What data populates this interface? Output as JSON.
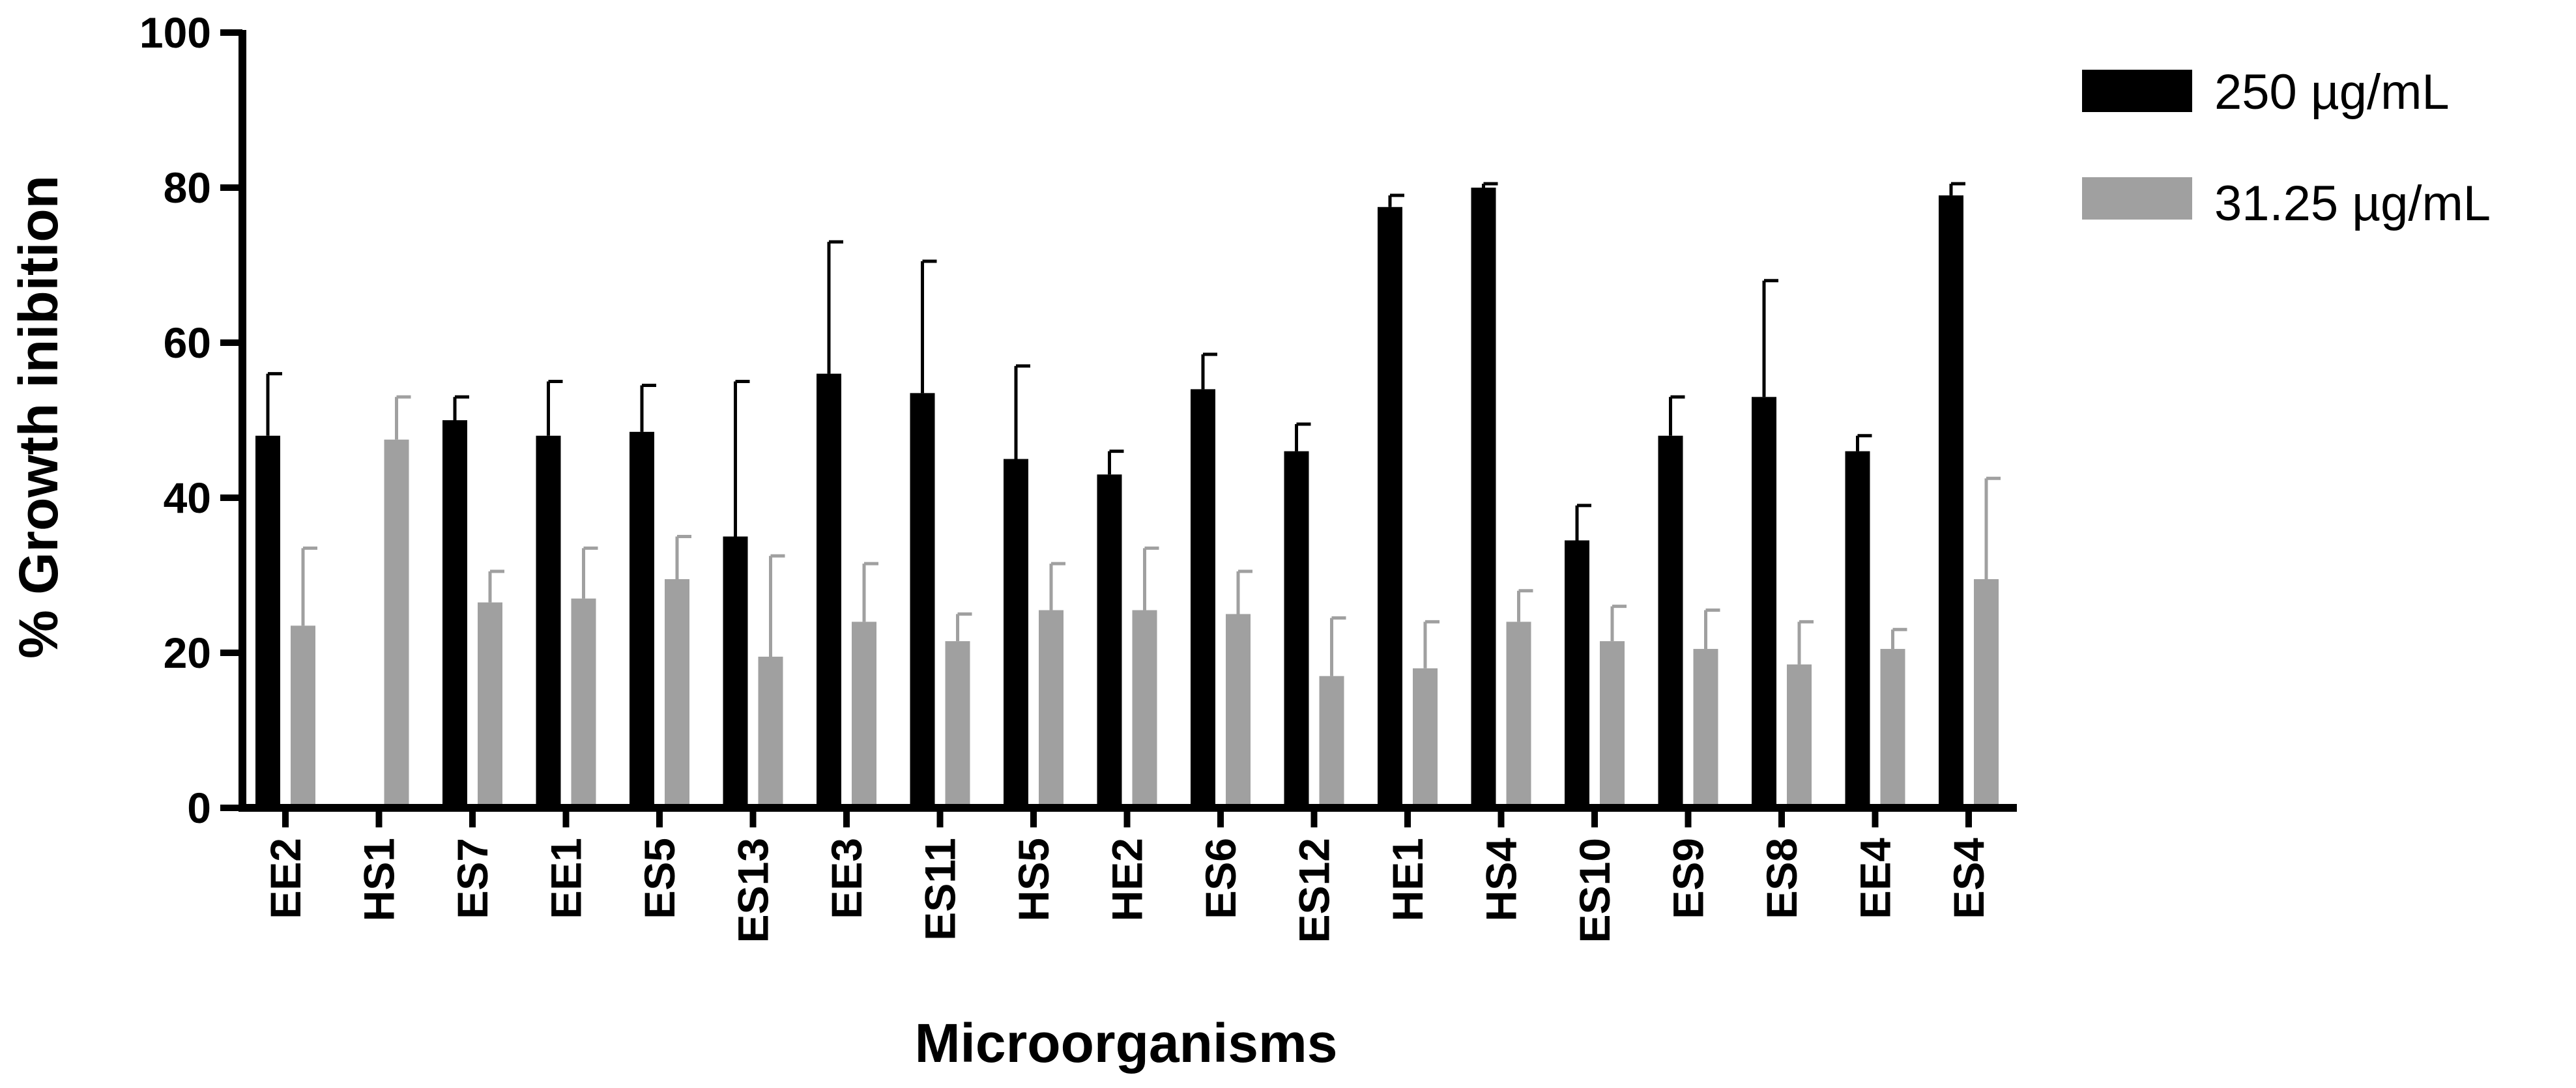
{
  "chart_data": {
    "type": "bar",
    "xlabel": "Microorganisms",
    "ylabel": "% Growth inibition",
    "ylim": [
      0,
      100
    ],
    "yticks": [
      "0",
      "20",
      "40",
      "60",
      "80",
      "100"
    ],
    "categories": [
      "EE2",
      "HS1",
      "ES7",
      "EE1",
      "ES5",
      "ES13",
      "EE3",
      "ES11",
      "HS5",
      "HE2",
      "ES6",
      "ES12",
      "HE1",
      "HS4",
      "ES10",
      "ES9",
      "ES8",
      "EE4",
      "ES4"
    ],
    "series": [
      {
        "name": "250 µg/mL",
        "color": "#000000",
        "values": [
          48,
          null,
          50,
          48,
          48.5,
          35,
          56,
          53.5,
          45,
          43,
          54,
          46,
          77.5,
          80,
          34.5,
          48,
          53,
          46,
          79
        ],
        "errors": [
          8,
          null,
          3,
          7,
          6,
          20,
          17,
          17,
          12,
          3,
          4.5,
          3.5,
          1.5,
          0.5,
          4.5,
          5,
          15,
          2,
          1.5
        ]
      },
      {
        "name": "31.25 µg/mL",
        "color": "#a0a0a0",
        "values": [
          23.5,
          47.5,
          26.5,
          27,
          29.5,
          19.5,
          24,
          21.5,
          25.5,
          25.5,
          25,
          17,
          18,
          24,
          21.5,
          20.5,
          18.5,
          20.5,
          29.5
        ],
        "errors": [
          10,
          5.5,
          4,
          6.5,
          5.5,
          13,
          7.5,
          3.5,
          6,
          8,
          5.5,
          7.5,
          6,
          4,
          4.5,
          5,
          5.5,
          2.5,
          13
        ]
      }
    ],
    "legend_position": "top-right",
    "grid": false
  }
}
